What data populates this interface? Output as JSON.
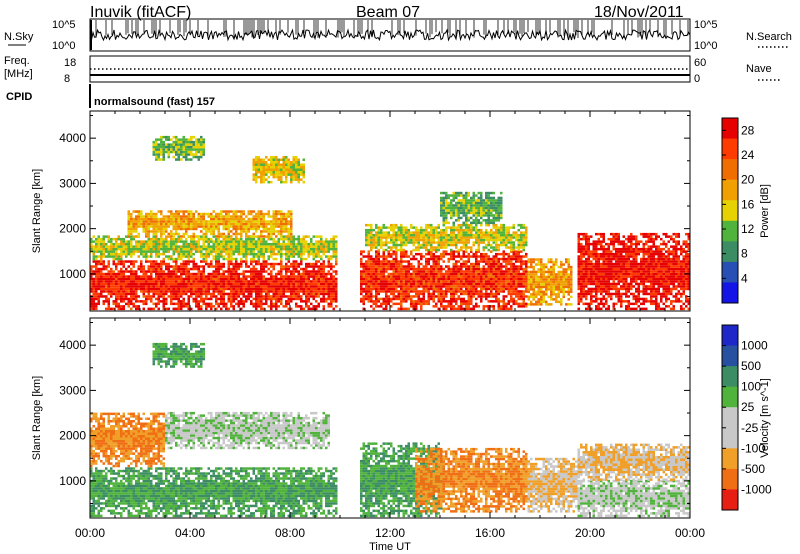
{
  "header": {
    "station": "Inuvik (fitACF)",
    "beam": "Beam 07",
    "date": "18/Nov/2011"
  },
  "strip_labels": {
    "nsky": "N.Sky",
    "nsky_top": "10^5",
    "nsky_bottom": "10^0",
    "nsearch": "N.Search",
    "nsearch_top": "10^5",
    "nsearch_bottom": "10^0",
    "freq": "Freq.",
    "freq_unit": "[MHz]",
    "freq_top": "18",
    "freq_bottom": "8",
    "nave": "Nave",
    "nave_top": "60",
    "nave_bottom": "0",
    "cpid": "CPID",
    "cpid_value": "normalsound (fast) 157"
  },
  "colors": {
    "power_scale": [
      "#1414e6",
      "#2850b4",
      "#3c8c64",
      "#50b43c",
      "#e6d200",
      "#f0a000",
      "#f06e00",
      "#ff3c00",
      "#e60000"
    ],
    "velocity_scale": [
      "#1e28c8",
      "#2850a0",
      "#3c8c64",
      "#50b43c",
      "#c8c8c8",
      "#c8c8c8",
      "#f0a028",
      "#f06e14",
      "#e61e14"
    ]
  },
  "chart_data": [
    {
      "type": "heatmap",
      "title": "",
      "quantity": "Power",
      "xlabel": "Time UT",
      "ylabel": "Slant Range [km]",
      "x_ticks": [
        "00:00",
        "04:00",
        "08:00",
        "12:00",
        "16:00",
        "20:00",
        "00:00"
      ],
      "x_range_hours": [
        0,
        24
      ],
      "y_ticks": [
        1000,
        2000,
        3000,
        4000
      ],
      "ylim": [
        180,
        4600
      ],
      "colorbar": {
        "label": "Power [dB]",
        "ticks": [
          4,
          8,
          12,
          16,
          20,
          24,
          28
        ],
        "range": [
          0,
          30
        ]
      },
      "bands": [
        {
          "t0": 0,
          "t1": 9.8,
          "r0": 200,
          "r1": 1300,
          "level": 27
        },
        {
          "t0": 0,
          "t1": 9.8,
          "r0": 1300,
          "r1": 1800,
          "level": 14
        },
        {
          "t0": 1.5,
          "t1": 8,
          "r0": 1800,
          "r1": 2400,
          "level": 18
        },
        {
          "t0": 2.5,
          "t1": 4.5,
          "r0": 3500,
          "r1": 4000,
          "level": 12
        },
        {
          "t0": 6.5,
          "t1": 8.5,
          "r0": 3000,
          "r1": 3600,
          "level": 16
        },
        {
          "t0": 10.8,
          "t1": 17.5,
          "r0": 200,
          "r1": 1500,
          "level": 26
        },
        {
          "t0": 11,
          "t1": 17.5,
          "r0": 1500,
          "r1": 2100,
          "level": 15
        },
        {
          "t0": 17.5,
          "t1": 19.3,
          "r0": 300,
          "r1": 1300,
          "level": 19
        },
        {
          "t0": 19.5,
          "t1": 24,
          "r0": 200,
          "r1": 1900,
          "level": 28
        },
        {
          "t0": 14,
          "t1": 16.5,
          "r0": 2100,
          "r1": 2800,
          "level": 11
        }
      ]
    },
    {
      "type": "heatmap",
      "title": "",
      "quantity": "Velocity",
      "xlabel": "Time UT",
      "ylabel": "Slant Range [km]",
      "x_ticks": [
        "00:00",
        "04:00",
        "08:00",
        "12:00",
        "16:00",
        "20:00",
        "00:00"
      ],
      "x_range_hours": [
        0,
        24
      ],
      "y_ticks": [
        1000,
        2000,
        3000,
        4000
      ],
      "ylim": [
        180,
        4600
      ],
      "colorbar": {
        "label": "Velocity [m s^-1]",
        "ticks": [
          "1000",
          "500",
          "100",
          "25",
          "-25",
          "-100",
          "-500",
          "-1000"
        ]
      },
      "bands": [
        {
          "t0": 0,
          "t1": 9.8,
          "r0": 200,
          "r1": 1300,
          "level": 100
        },
        {
          "t0": 0,
          "t1": 3,
          "r0": 1300,
          "r1": 2500,
          "level": -500
        },
        {
          "t0": 3,
          "t1": 9.5,
          "r0": 1700,
          "r1": 2500,
          "level": 0
        },
        {
          "t0": 2.5,
          "t1": 4.5,
          "r0": 3500,
          "r1": 4000,
          "level": 100
        },
        {
          "t0": 10.8,
          "t1": 14,
          "r0": 200,
          "r1": 1800,
          "level": 100
        },
        {
          "t0": 13,
          "t1": 17.5,
          "r0": 300,
          "r1": 1700,
          "level": -500
        },
        {
          "t0": 17.5,
          "t1": 19.5,
          "r0": 300,
          "r1": 1500,
          "level": -100
        },
        {
          "t0": 19.5,
          "t1": 24,
          "r0": 200,
          "r1": 1000,
          "level": 0
        },
        {
          "t0": 19.5,
          "t1": 24,
          "r0": 1000,
          "r1": 1800,
          "level": -100
        }
      ]
    }
  ]
}
